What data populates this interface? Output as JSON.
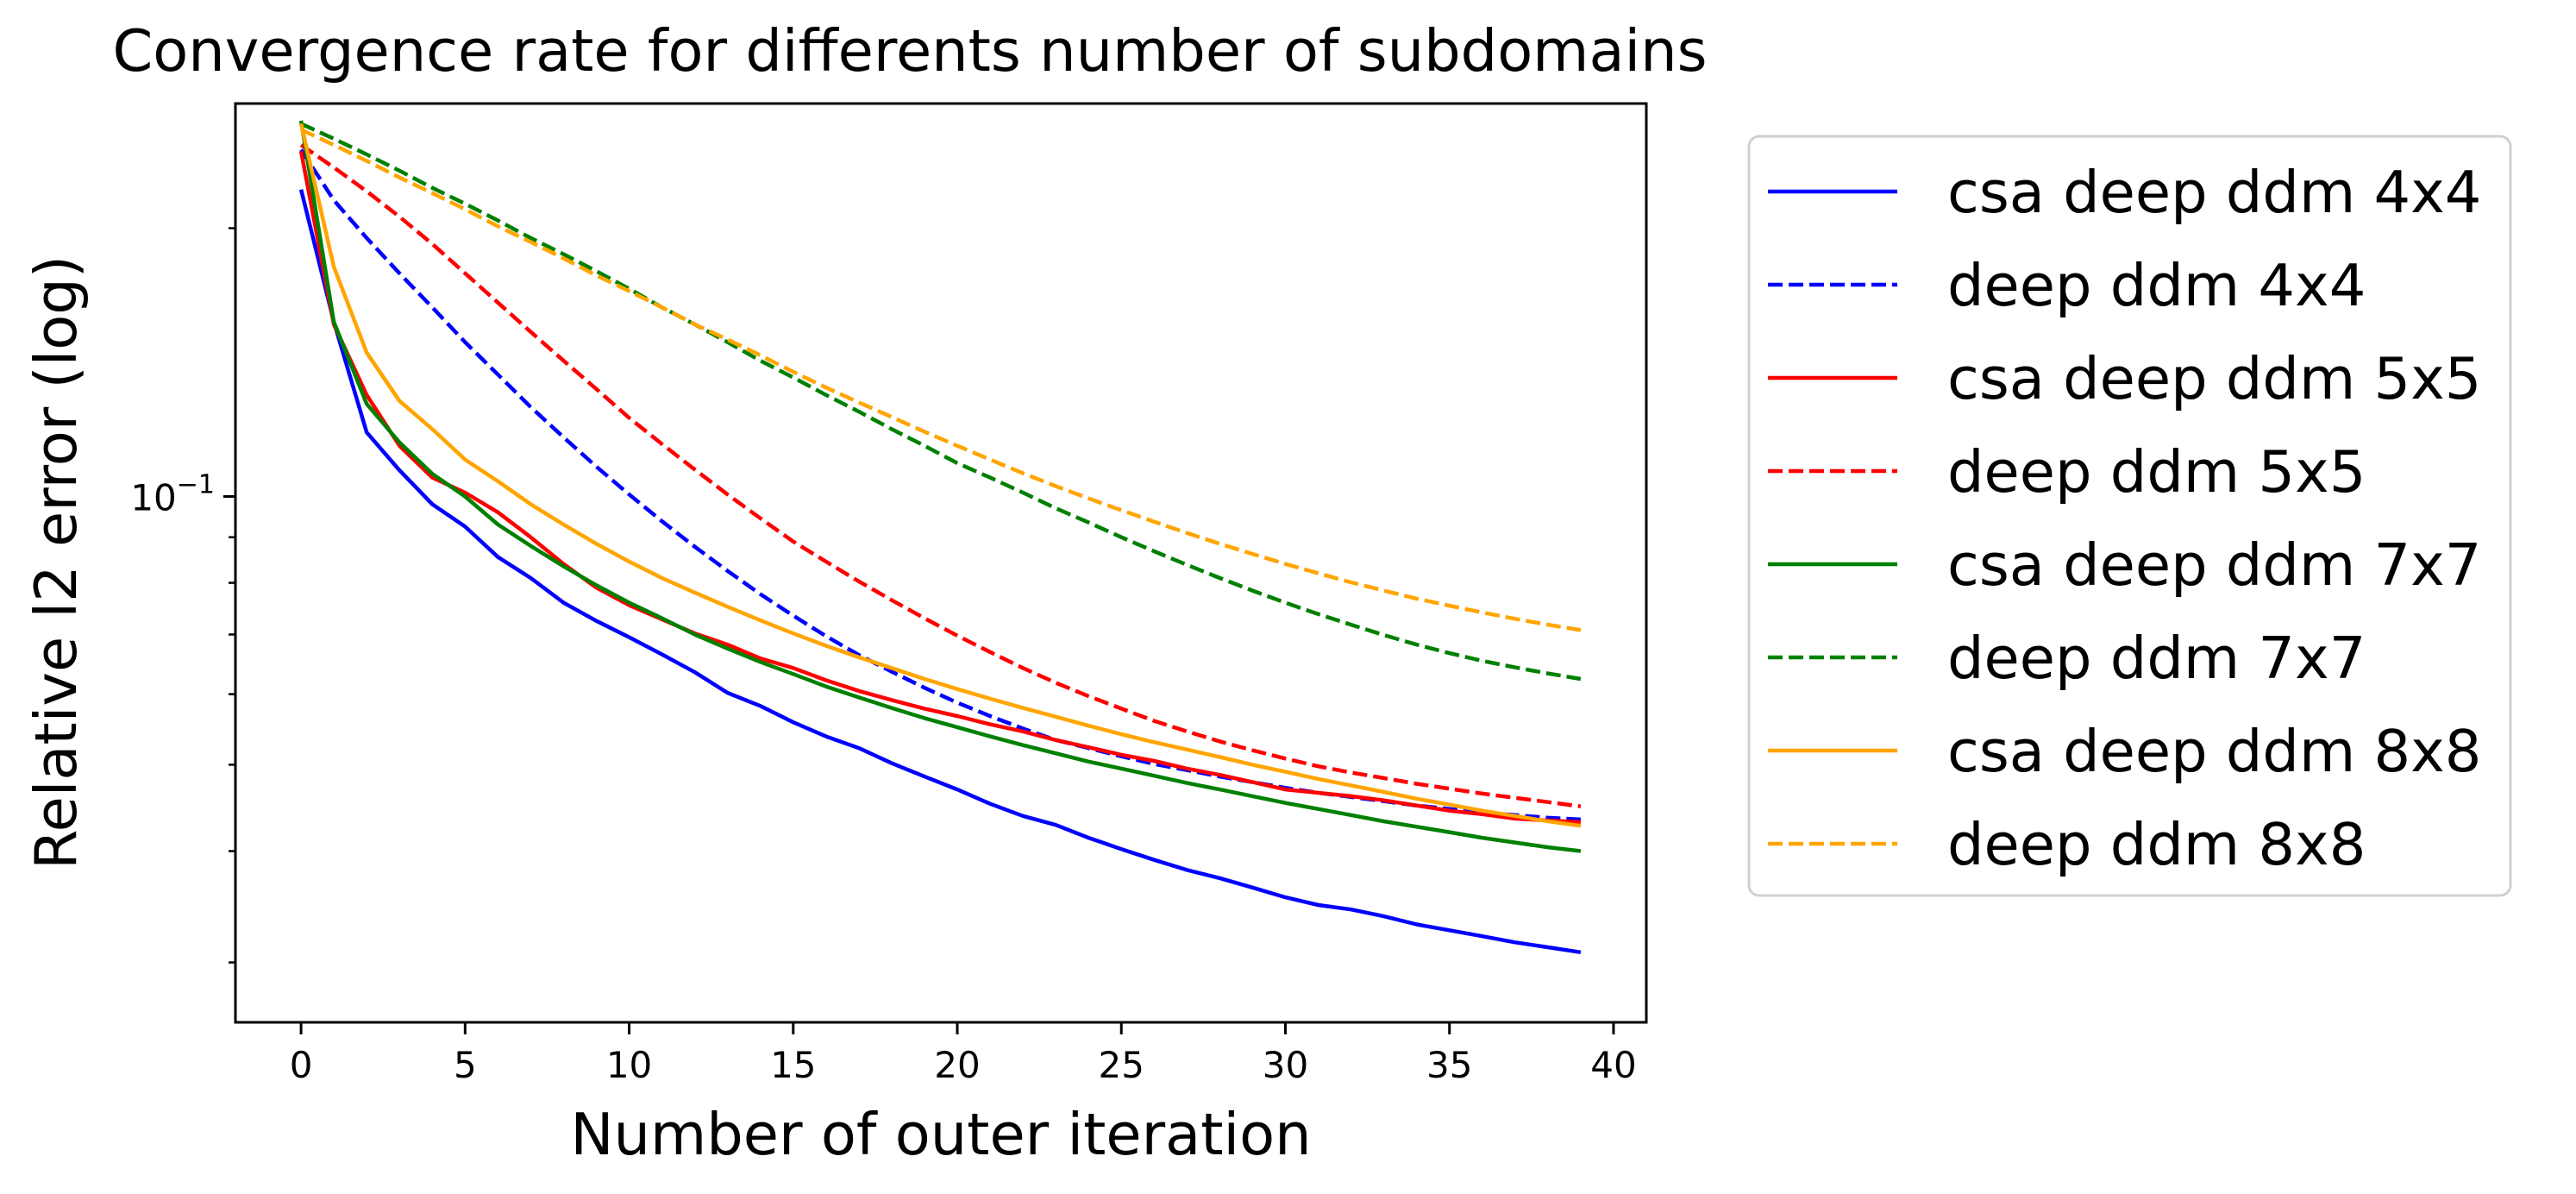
{
  "chart_data": {
    "type": "line",
    "title": "Convergence rate for differents number of subdomains",
    "xlabel": "Number of outer iteration",
    "ylabel": "Relative l2 error (log)",
    "yscale": "log",
    "xlim": [
      -2,
      41
    ],
    "ylim": [
      0.0257,
      0.276
    ],
    "xticks": [
      0,
      5,
      10,
      15,
      20,
      25,
      30,
      35,
      40
    ],
    "xtick_labels": [
      "0",
      "5",
      "10",
      "15",
      "20",
      "25",
      "30",
      "35",
      "40"
    ],
    "yticks_major": [
      0.1
    ],
    "ytick_major_labels": [
      {
        "base": "10",
        "exp": "−1"
      }
    ],
    "yticks_minor": [
      0.03,
      0.04,
      0.05,
      0.06,
      0.07,
      0.08,
      0.09,
      0.2
    ],
    "grid": false,
    "legend_position": "outside-right",
    "x": [
      0,
      1,
      2,
      3,
      4,
      5,
      6,
      7,
      8,
      9,
      10,
      11,
      12,
      13,
      14,
      15,
      16,
      17,
      18,
      19,
      20,
      21,
      22,
      23,
      24,
      25,
      26,
      27,
      28,
      29,
      30,
      31,
      32,
      33,
      34,
      35,
      36,
      37,
      38,
      39
    ],
    "series": [
      {
        "name": "csa deep ddm 4x4",
        "color": "#0000ff",
        "style": "solid",
        "values": [
          0.221,
          0.157,
          0.118,
          0.107,
          0.098,
          0.0925,
          0.0855,
          0.081,
          0.076,
          0.0725,
          0.0695,
          0.0665,
          0.0635,
          0.0602,
          0.0582,
          0.0558,
          0.0538,
          0.0522,
          0.0502,
          0.0485,
          0.0469,
          0.0452,
          0.0438,
          0.0428,
          0.0414,
          0.0402,
          0.0391,
          0.0381,
          0.0373,
          0.0364,
          0.0355,
          0.0348,
          0.0344,
          0.0338,
          0.0331,
          0.0326,
          0.0321,
          0.0316,
          0.0312,
          0.0308
        ]
      },
      {
        "name": "deep ddm 4x4",
        "color": "#0000ff",
        "style": "dashed",
        "values": [
          0.245,
          0.215,
          0.195,
          0.178,
          0.163,
          0.149,
          0.137,
          0.126,
          0.1165,
          0.108,
          0.1005,
          0.0938,
          0.0878,
          0.0825,
          0.0777,
          0.0735,
          0.0697,
          0.0664,
          0.0636,
          0.061,
          0.0587,
          0.0567,
          0.0549,
          0.0533,
          0.0522,
          0.0511,
          0.0501,
          0.0493,
          0.0485,
          0.0478,
          0.0471,
          0.0465,
          0.046,
          0.0455,
          0.045,
          0.0446,
          0.0442,
          0.0439,
          0.0436,
          0.0434
        ]
      },
      {
        "name": "csa deep ddm 5x5",
        "color": "#ff0000",
        "style": "solid",
        "values": [
          0.244,
          0.156,
          0.13,
          0.114,
          0.105,
          0.101,
          0.096,
          0.09,
          0.084,
          0.079,
          0.0755,
          0.0728,
          0.0702,
          0.0682,
          0.0658,
          0.0642,
          0.0622,
          0.0605,
          0.0591,
          0.0578,
          0.0567,
          0.0555,
          0.0545,
          0.0533,
          0.0523,
          0.0513,
          0.0505,
          0.0495,
          0.0487,
          0.0478,
          0.0469,
          0.0465,
          0.0461,
          0.0456,
          0.045,
          0.0444,
          0.044,
          0.0435,
          0.0433,
          0.0431
        ]
      },
      {
        "name": "deep ddm 5x5",
        "color": "#ff0000",
        "style": "dashed",
        "values": [
          0.248,
          0.234,
          0.22,
          0.206,
          0.192,
          0.178,
          0.165,
          0.153,
          0.142,
          0.132,
          0.1225,
          0.1145,
          0.1072,
          0.1005,
          0.0945,
          0.089,
          0.0845,
          0.0803,
          0.0765,
          0.073,
          0.0698,
          0.0669,
          0.0642,
          0.0618,
          0.0597,
          0.0578,
          0.056,
          0.0545,
          0.0531,
          0.0519,
          0.0508,
          0.0498,
          0.049,
          0.0483,
          0.0476,
          0.047,
          0.0464,
          0.0459,
          0.0454,
          0.0449
        ]
      },
      {
        "name": "csa deep ddm 7x7",
        "color": "#008000",
        "style": "solid",
        "values": [
          0.264,
          0.157,
          0.127,
          0.115,
          0.106,
          0.1,
          0.093,
          0.088,
          0.0835,
          0.0795,
          0.076,
          0.073,
          0.07,
          0.0675,
          0.0652,
          0.0632,
          0.0612,
          0.0595,
          0.0579,
          0.0564,
          0.0551,
          0.0538,
          0.0526,
          0.0515,
          0.0504,
          0.0495,
          0.0486,
          0.0477,
          0.0469,
          0.0461,
          0.0453,
          0.0446,
          0.0439,
          0.0432,
          0.0426,
          0.042,
          0.0414,
          0.0409,
          0.0404,
          0.04
        ]
      },
      {
        "name": "deep ddm 7x7",
        "color": "#008000",
        "style": "dashed",
        "values": [
          0.262,
          0.252,
          0.242,
          0.232,
          0.222,
          0.213,
          0.204,
          0.195,
          0.187,
          0.179,
          0.171,
          0.163,
          0.156,
          0.149,
          0.142,
          0.136,
          0.13,
          0.1245,
          0.119,
          0.114,
          0.109,
          0.105,
          0.101,
          0.097,
          0.0935,
          0.09,
          0.0868,
          0.0838,
          0.081,
          0.0784,
          0.076,
          0.0738,
          0.0718,
          0.0699,
          0.0682,
          0.0667,
          0.0654,
          0.0643,
          0.0633,
          0.0624
        ]
      },
      {
        "name": "csa deep ddm 8x8",
        "color": "#ffa500",
        "style": "solid",
        "values": [
          0.262,
          0.181,
          0.145,
          0.128,
          0.119,
          0.11,
          0.104,
          0.098,
          0.093,
          0.0885,
          0.0845,
          0.081,
          0.078,
          0.0752,
          0.0726,
          0.0702,
          0.068,
          0.066,
          0.0642,
          0.0624,
          0.0608,
          0.0593,
          0.0579,
          0.0566,
          0.0553,
          0.0541,
          0.053,
          0.052,
          0.051,
          0.05,
          0.0491,
          0.0482,
          0.0474,
          0.0466,
          0.0458,
          0.0451,
          0.0444,
          0.0438,
          0.0432,
          0.0427
        ]
      },
      {
        "name": "deep ddm 8x8",
        "color": "#ffa500",
        "style": "dashed",
        "values": [
          0.258,
          0.248,
          0.238,
          0.228,
          0.219,
          0.21,
          0.201,
          0.193,
          0.185,
          0.177,
          0.17,
          0.163,
          0.156,
          0.15,
          0.144,
          0.138,
          0.1325,
          0.1275,
          0.1228,
          0.1182,
          0.114,
          0.11,
          0.1062,
          0.1027,
          0.0995,
          0.0965,
          0.0937,
          0.091,
          0.0885,
          0.0862,
          0.084,
          0.082,
          0.0801,
          0.0784,
          0.0768,
          0.0754,
          0.0741,
          0.0729,
          0.0718,
          0.0708
        ]
      }
    ]
  }
}
